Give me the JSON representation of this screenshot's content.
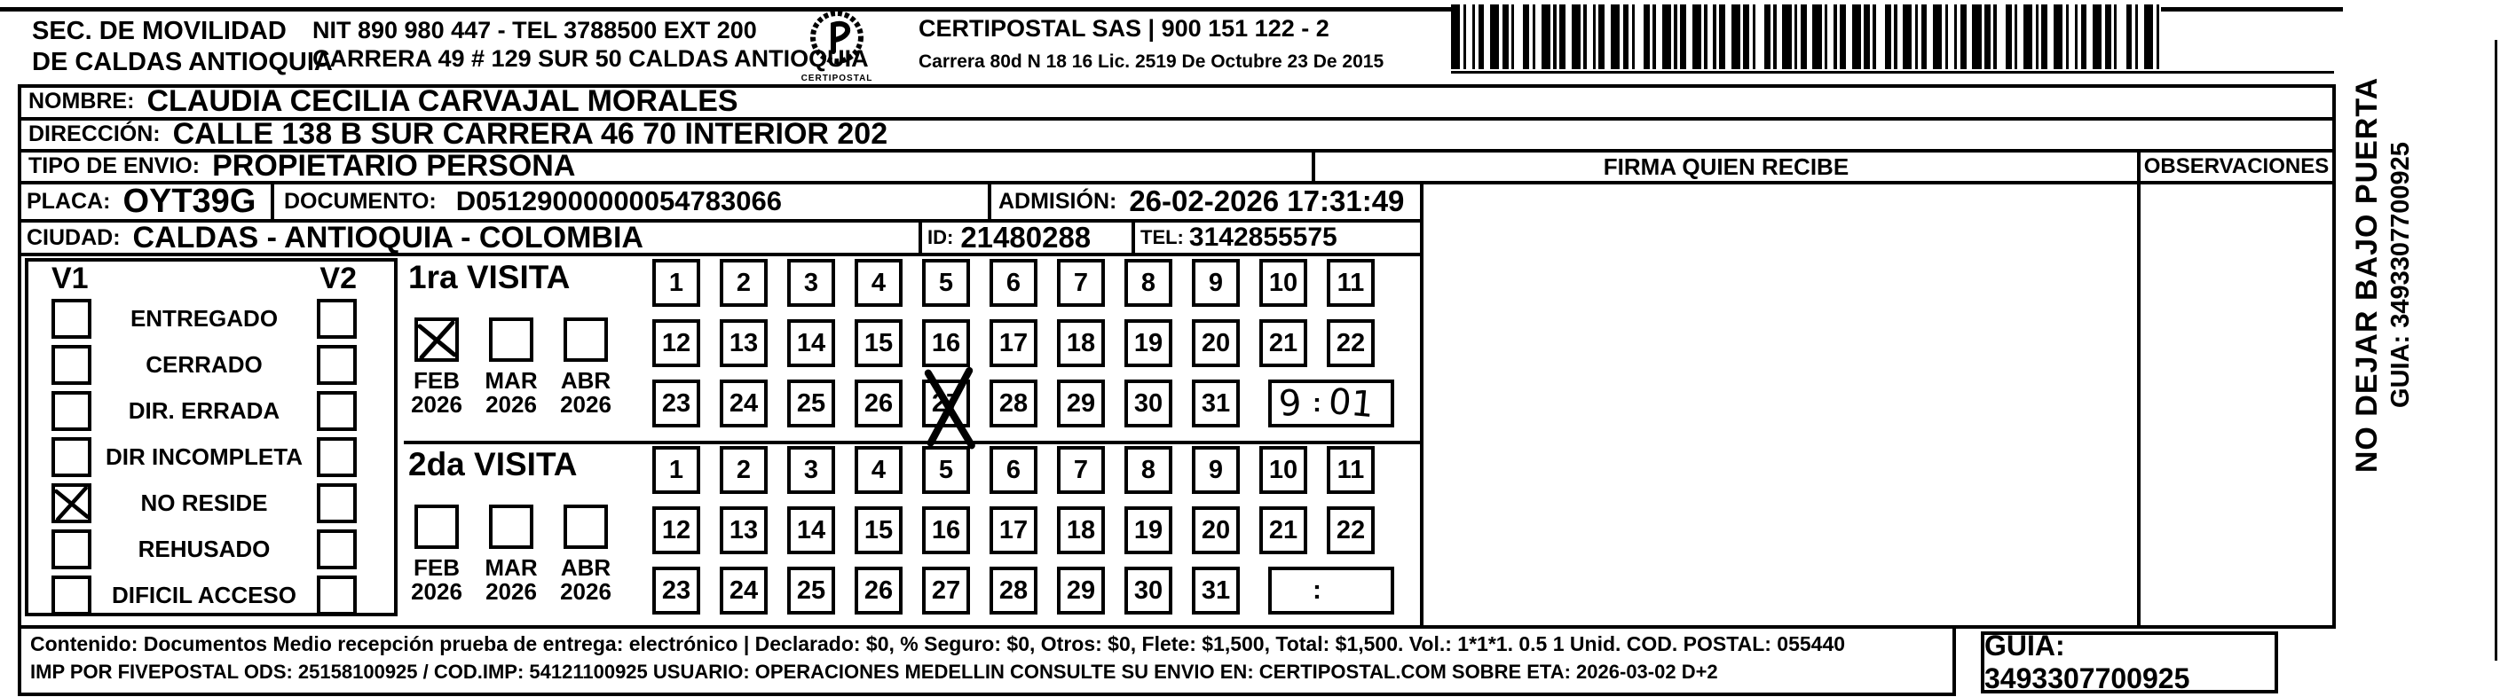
{
  "header": {
    "sender": {
      "line1": "SEC. DE MOVILIDAD",
      "line2": "DE CALDAS ANTIOQUIA"
    },
    "sender_contact": {
      "line1": "NIT 890 980 447 - TEL 3788500 EXT 200",
      "line2": "CARRERA 49 # 129 SUR 50  CALDAS ANTIOQUIA"
    },
    "logo_text": "CERTIPOSTAL",
    "carrier": {
      "line1": "CERTIPOSTAL SAS | 900 151 122 - 2",
      "line2": "Carrera 80d N 18 16  Lic. 2519 De Octubre 23 De 2015"
    }
  },
  "recipient": {
    "nombre": {
      "label": "NOMBRE:",
      "value": "CLAUDIA CECILIA CARVAJAL MORALES"
    },
    "direccion": {
      "label": "DIRECCIÓN:",
      "value": "CALLE 138 B SUR CARRERA 46 70 INTERIOR 202"
    },
    "tipo_envio": {
      "label": "TIPO DE ENVIO:",
      "value": "PROPIETARIO PERSONA"
    },
    "placa": {
      "label": "PLACA:",
      "value": "OYT39G"
    },
    "documento": {
      "label": "DOCUMENTO:",
      "value": "D05129000000054783066"
    },
    "admision": {
      "label": "ADMISIÓN:",
      "value": "26-02-2026 17:31:49"
    },
    "ciudad": {
      "label": "CIUDAD:",
      "value": "CALDAS - ANTIOQUIA - COLOMBIA"
    },
    "id": {
      "label": "ID:",
      "value": "21480288"
    },
    "tel": {
      "label": "TEL:",
      "value": "3142855575"
    }
  },
  "delivery": {
    "firma_header": "FIRMA QUIEN RECIBE",
    "observaciones_header": "OBSERVACIONES"
  },
  "status_panel": {
    "col1_header": "V1",
    "col2_header": "V2",
    "items": [
      {
        "label": "ENTREGADO",
        "v1_checked": false,
        "v2_checked": false
      },
      {
        "label": "CERRADO",
        "v1_checked": false,
        "v2_checked": false
      },
      {
        "label": "DIR. ERRADA",
        "v1_checked": false,
        "v2_checked": false
      },
      {
        "label": "DIR INCOMPLETA",
        "v1_checked": false,
        "v2_checked": false
      },
      {
        "label": "NO RESIDE",
        "v1_checked": true,
        "v2_checked": false
      },
      {
        "label": "REHUSADO",
        "v1_checked": false,
        "v2_checked": false
      },
      {
        "label": "DIFICIL ACCESO",
        "v1_checked": false,
        "v2_checked": false
      }
    ]
  },
  "visits": [
    {
      "title": "1ra VISITA",
      "months": [
        {
          "month": "FEB",
          "year": "2026",
          "checked": true
        },
        {
          "month": "MAR",
          "year": "2026",
          "checked": false
        },
        {
          "month": "ABR",
          "year": "2026",
          "checked": false
        }
      ],
      "crossed_day": 27,
      "time": {
        "hour": "9",
        "minutes": "01"
      }
    },
    {
      "title": "2da VISITA",
      "months": [
        {
          "month": "FEB",
          "year": "2026",
          "checked": false
        },
        {
          "month": "MAR",
          "year": "2026",
          "checked": false
        },
        {
          "month": "ABR",
          "year": "2026",
          "checked": false
        }
      ],
      "crossed_day": null,
      "time": {
        "hour": "",
        "minutes": ""
      }
    }
  ],
  "day_numbers": [
    1,
    2,
    3,
    4,
    5,
    6,
    7,
    8,
    9,
    10,
    11,
    12,
    13,
    14,
    15,
    16,
    17,
    18,
    19,
    20,
    21,
    22,
    23,
    24,
    25,
    26,
    27,
    28,
    29,
    30,
    31
  ],
  "side_note": {
    "line1": "NO DEJAR BAJO PUERTA",
    "line2": "GUIA: 3493307700925"
  },
  "footer": {
    "line1": "Contenido: Documentos Medio recepción prueba de entrega: electrónico | Declarado: $0, % Seguro: $0, Otros: $0, Flete: $1,500, Total: $1,500. Vol.: 1*1*1. 0.5  1 Unid. COD. POSTAL: 055440",
    "line2": "IMP POR FIVEPOSTAL ODS: 25158100925 / COD.IMP: 54121100925 USUARIO: OPERACIONES MEDELLIN CONSULTE SU ENVIO EN: CERTIPOSTAL.COM SOBRE ETA: 2026-03-02 D+2",
    "guia": "GUIA: 3493307700925"
  },
  "colors": {
    "ink": "#000000",
    "paper": "#ffffff"
  }
}
